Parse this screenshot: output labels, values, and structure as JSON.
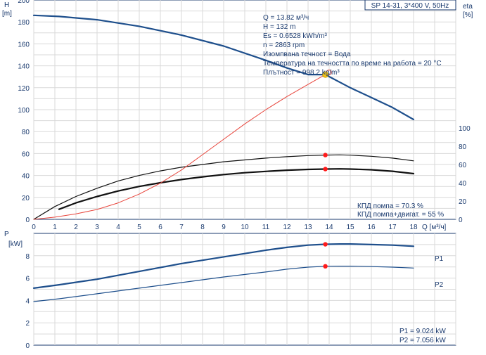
{
  "chart_data": [
    {
      "type": "line",
      "panel": "head-efficiency",
      "model_label": "SP 14-31, 3*400 V, 50Hz",
      "ylabel": "H\n[m]",
      "ylabel_right": "eta\n[%]",
      "xlabel": "Q [м³/ч]",
      "xlim": [
        0,
        18
      ],
      "ylim": [
        0,
        200
      ],
      "ylim_right": [
        0,
        200
      ],
      "x_ticks": [
        "0",
        "1",
        "2",
        "3",
        "4",
        "5",
        "6",
        "7",
        "8",
        "9",
        "10",
        "11",
        "12",
        "13",
        "14",
        "15",
        "16",
        "17",
        "18"
      ],
      "y_ticks": [
        "0",
        "20",
        "40",
        "60",
        "80",
        "100",
        "120",
        "140",
        "160",
        "180",
        "200"
      ],
      "y_ticks_right": [
        "0",
        "20",
        "40",
        "60",
        "80",
        "100"
      ],
      "grid": true,
      "info_lines": [
        "Q = 13.82 м³/ч",
        "H = 132 m",
        "Es = 0.6528 kWh/m³",
        "n = 2863 rpm",
        "Изомпвана течност = Вода",
        "Температура на течността по време на работа = 20 °C",
        "Плътност = 998.2 kg/m³"
      ],
      "efficiency_labels": [
        "КПД помпа = 70.3 %",
        "КПД помпа+двигат. = 55 %"
      ],
      "series": [
        {
          "role": "head",
          "x": [
            0,
            1.2,
            3,
            5,
            7,
            9,
            11,
            12,
            13,
            13.82,
            15,
            16,
            17,
            18
          ],
          "values": [
            186,
            185,
            182,
            176,
            168,
            158,
            145,
            138,
            132,
            132,
            120,
            111,
            102,
            91
          ]
        },
        {
          "role": "pump-efficiency",
          "x": [
            0,
            1,
            2,
            3,
            4,
            5,
            6,
            7,
            8,
            9,
            10,
            11,
            12,
            13,
            13.82,
            14.5,
            15,
            16,
            17,
            18
          ],
          "values": [
            0,
            14,
            25,
            34,
            42,
            48,
            53,
            57,
            60,
            63,
            65,
            67,
            68.5,
            69.8,
            70.3,
            70.5,
            70.2,
            69,
            67,
            64
          ]
        },
        {
          "role": "pump-motor-efficiency",
          "x": [
            1.2,
            2,
            3,
            4,
            5,
            6,
            7,
            8,
            9,
            10,
            11,
            12,
            13,
            13.82,
            14.5,
            15,
            16,
            17,
            18
          ],
          "values": [
            11,
            18,
            25,
            31,
            36,
            40,
            43.5,
            46.5,
            49,
            51,
            52.5,
            53.8,
            54.6,
            55,
            55.2,
            55,
            54.2,
            52.6,
            50
          ]
        },
        {
          "role": "system-curve",
          "x": [
            0,
            1,
            2,
            3,
            4,
            5,
            6,
            7,
            8,
            9,
            10,
            11,
            12,
            13,
            13.82,
            14
          ],
          "values": [
            0,
            2,
            5,
            9,
            15,
            23,
            33,
            45,
            59,
            73,
            87,
            100,
            112,
            123,
            132,
            136
          ]
        }
      ],
      "duty_point": {
        "x": 13.82,
        "head": 132,
        "eff_pump": 70.3,
        "eff_total": 55
      }
    },
    {
      "type": "line",
      "panel": "power",
      "ylabel": "P\n[kW]",
      "xlim": [
        0,
        18
      ],
      "ylim": [
        0,
        10
      ],
      "y_ticks": [
        "0",
        "2",
        "4",
        "6",
        "8"
      ],
      "grid": true,
      "power_labels": [
        "P1 = 9.024 kW",
        "P2 = 7.056 kW"
      ],
      "series": [
        {
          "name": "P1",
          "x": [
            0,
            1.2,
            3,
            5,
            7,
            9,
            11,
            12,
            13,
            13.82,
            14.5,
            15,
            16,
            17,
            18
          ],
          "values": [
            5.1,
            5.4,
            5.9,
            6.6,
            7.3,
            7.9,
            8.5,
            8.75,
            8.95,
            9.024,
            9.05,
            9.05,
            9.0,
            8.95,
            8.85
          ]
        },
        {
          "name": "P2",
          "x": [
            0,
            1.2,
            3,
            5,
            7,
            9,
            11,
            12,
            13,
            13.82,
            14.5,
            15,
            16,
            17,
            18
          ],
          "values": [
            3.9,
            4.15,
            4.6,
            5.1,
            5.6,
            6.1,
            6.55,
            6.8,
            6.98,
            7.056,
            7.07,
            7.07,
            7.03,
            6.98,
            6.9
          ]
        }
      ],
      "duty_point": {
        "x": 13.82,
        "p1": 9.024,
        "p2": 7.056
      }
    }
  ]
}
